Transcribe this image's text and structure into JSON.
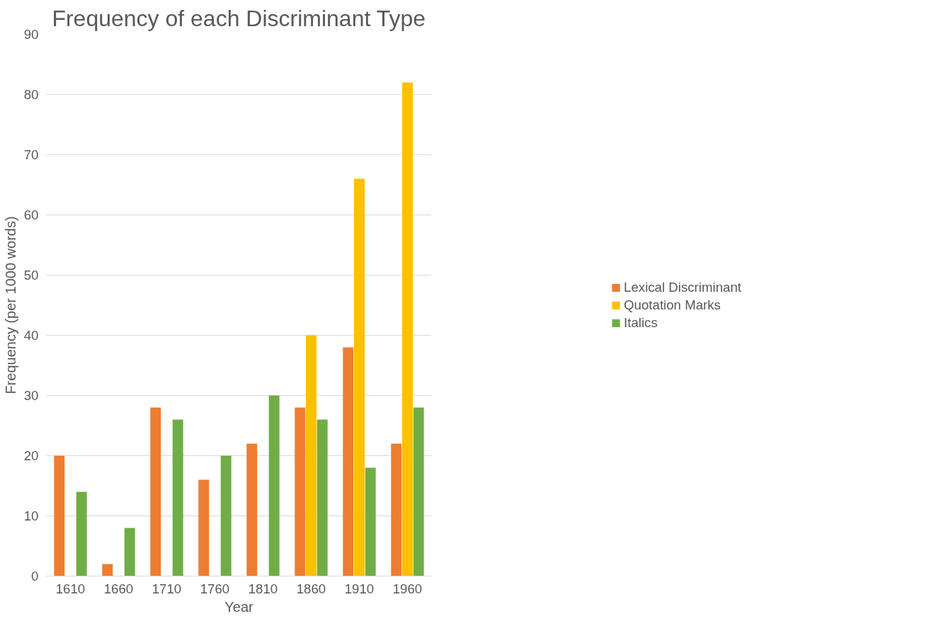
{
  "chart_data": {
    "type": "bar",
    "title": "Frequency of each Discriminant Type",
    "xlabel": "Year",
    "ylabel": "Frequency (per 1000 words)",
    "categories": [
      "1610",
      "1660",
      "1710",
      "1760",
      "1810",
      "1860",
      "1910",
      "1960"
    ],
    "series": [
      {
        "name": "Lexical Discriminant",
        "color": "#ed7d31",
        "values": [
          20,
          2,
          28,
          16,
          22,
          28,
          38,
          22
        ]
      },
      {
        "name": "Quotation Marks",
        "color": "#ffc000",
        "values": [
          null,
          null,
          null,
          null,
          null,
          40,
          66,
          82
        ]
      },
      {
        "name": "Italics",
        "color": "#70ad47",
        "values": [
          14,
          8,
          26,
          20,
          30,
          26,
          18,
          28
        ]
      }
    ],
    "ylim": [
      0,
      90
    ],
    "yticks": [
      0,
      10,
      20,
      30,
      40,
      50,
      60,
      70,
      80,
      90
    ],
    "grid": "y",
    "legend": "right"
  }
}
